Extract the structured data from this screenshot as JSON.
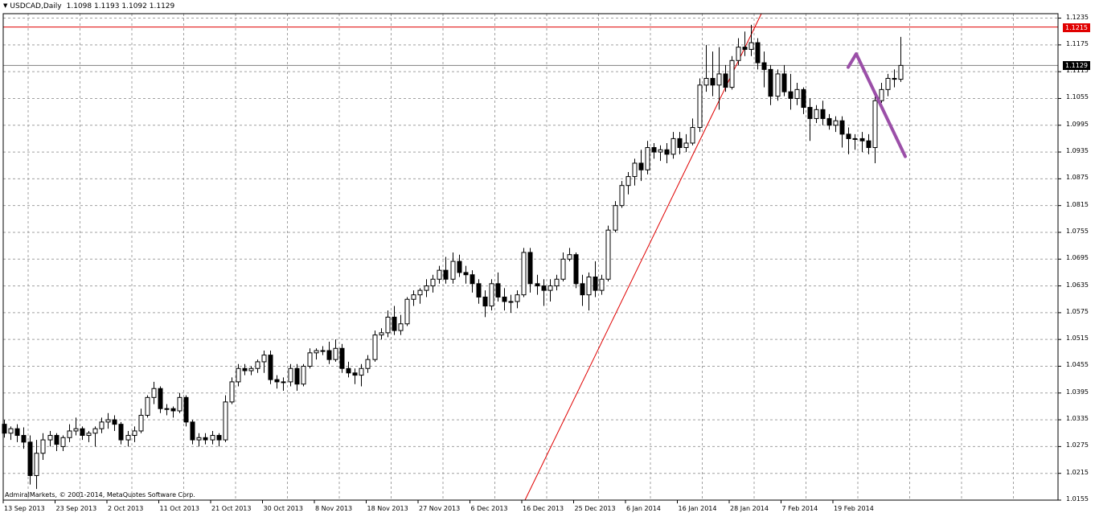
{
  "header": {
    "symbol": "USDCAD,Daily",
    "ohlc": [
      "1.1098",
      "1.1193",
      "1.1092",
      "1.1129"
    ]
  },
  "copyright": "AdmiralMarkets, © 2001-2014, MetaQuotes Software Corp.",
  "price_tags": {
    "resistance_level": "1.1215",
    "current_bid": "1.1129"
  },
  "colors": {
    "background": "#ffffff",
    "grid": "#a0a0a0",
    "candle_outline": "#000000",
    "bull_fill": "#ffffff",
    "bear_fill": "#000000",
    "trendline": "#e00000",
    "level_line": "#e00000",
    "projection": "#9b4fa8"
  },
  "chart_data": {
    "type": "candlestick",
    "title": "USDCAD,Daily",
    "ylim": [
      1.0155,
      1.1245
    ],
    "y_ticks": [
      "1.1235",
      "1.1175",
      "1.1115",
      "1.1055",
      "1.0995",
      "1.0935",
      "1.0875",
      "1.0815",
      "1.0755",
      "1.0695",
      "1.0635",
      "1.0575",
      "1.0515",
      "1.0455",
      "1.0395",
      "1.0335",
      "1.0275",
      "1.0215",
      "1.0155"
    ],
    "x_ticks": [
      "13 Sep 2013",
      "23 Sep 2013",
      "2 Oct 2013",
      "11 Oct 2013",
      "21 Oct 2013",
      "30 Oct 2013",
      "8 Nov 2013",
      "18 Nov 2013",
      "27 Nov 2013",
      "6 Dec 2013",
      "16 Dec 2013",
      "25 Dec 2013",
      "6 Jan 2014",
      "16 Jan 2014",
      "28 Jan 2014",
      "7 Feb 2014",
      "19 Feb 2014"
    ],
    "grid": true,
    "candles": [
      [
        1.0325,
        1.0335,
        1.0295,
        1.0305
      ],
      [
        1.0305,
        1.032,
        1.029,
        1.0315
      ],
      [
        1.0315,
        1.0325,
        1.0285,
        1.03
      ],
      [
        1.03,
        1.0318,
        1.027,
        1.0285
      ],
      [
        1.0285,
        1.03,
        1.019,
        1.021
      ],
      [
        1.021,
        1.029,
        1.018,
        1.026
      ],
      [
        1.026,
        1.0305,
        1.0245,
        1.029
      ],
      [
        1.029,
        1.031,
        1.0275,
        1.03
      ],
      [
        1.03,
        1.0305,
        1.0265,
        1.028
      ],
      [
        1.0275,
        1.03,
        1.0265,
        1.0295
      ],
      [
        1.0295,
        1.0325,
        1.0285,
        1.031
      ],
      [
        1.031,
        1.034,
        1.03,
        1.0315
      ],
      [
        1.0315,
        1.032,
        1.029,
        1.03
      ],
      [
        1.03,
        1.031,
        1.0285,
        1.0305
      ],
      [
        1.0305,
        1.032,
        1.0275,
        1.0315
      ],
      [
        1.0315,
        1.034,
        1.0305,
        1.033
      ],
      [
        1.033,
        1.035,
        1.0315,
        1.0335
      ],
      [
        1.0335,
        1.0345,
        1.031,
        1.0325
      ],
      [
        1.0325,
        1.033,
        1.028,
        1.029
      ],
      [
        1.029,
        1.031,
        1.0275,
        1.03
      ],
      [
        1.03,
        1.032,
        1.0285,
        1.031
      ],
      [
        1.031,
        1.036,
        1.0305,
        1.0345
      ],
      [
        1.0345,
        1.039,
        1.034,
        1.0385
      ],
      [
        1.0385,
        1.042,
        1.037,
        1.0405
      ],
      [
        1.0405,
        1.041,
        1.035,
        1.036
      ],
      [
        1.036,
        1.037,
        1.0345,
        1.036
      ],
      [
        1.036,
        1.0365,
        1.034,
        1.0355
      ],
      [
        1.0355,
        1.0395,
        1.035,
        1.0385
      ],
      [
        1.0385,
        1.039,
        1.032,
        1.033
      ],
      [
        1.033,
        1.0335,
        1.028,
        1.029
      ],
      [
        1.029,
        1.0305,
        1.0275,
        1.0295
      ],
      [
        1.0295,
        1.0305,
        1.028,
        1.029
      ],
      [
        1.029,
        1.031,
        1.028,
        1.03
      ],
      [
        1.03,
        1.0305,
        1.0275,
        1.029
      ],
      [
        1.029,
        1.039,
        1.0285,
        1.0375
      ],
      [
        1.0375,
        1.043,
        1.037,
        1.042
      ],
      [
        1.042,
        1.046,
        1.041,
        1.045
      ],
      [
        1.045,
        1.046,
        1.0435,
        1.0445
      ],
      [
        1.0445,
        1.0455,
        1.0435,
        1.045
      ],
      [
        1.045,
        1.047,
        1.044,
        1.0465
      ],
      [
        1.0465,
        1.049,
        1.044,
        1.048
      ],
      [
        1.048,
        1.049,
        1.0415,
        1.0425
      ],
      [
        1.0425,
        1.0435,
        1.0405,
        1.042
      ],
      [
        1.042,
        1.043,
        1.04,
        1.042
      ],
      [
        1.042,
        1.046,
        1.041,
        1.045
      ],
      [
        1.045,
        1.046,
        1.04,
        1.0415
      ],
      [
        1.0415,
        1.046,
        1.041,
        1.0455
      ],
      [
        1.0455,
        1.0495,
        1.045,
        1.0485
      ],
      [
        1.0485,
        1.0495,
        1.047,
        1.049
      ],
      [
        1.049,
        1.05,
        1.048,
        1.049
      ],
      [
        1.049,
        1.051,
        1.046,
        1.047
      ],
      [
        1.047,
        1.0515,
        1.0465,
        1.0495
      ],
      [
        1.0495,
        1.0505,
        1.044,
        1.045
      ],
      [
        1.045,
        1.0465,
        1.043,
        1.044
      ],
      [
        1.044,
        1.045,
        1.0415,
        1.0435
      ],
      [
        1.0435,
        1.046,
        1.041,
        1.045
      ],
      [
        1.045,
        1.048,
        1.044,
        1.047
      ],
      [
        1.047,
        1.0535,
        1.0465,
        1.0525
      ],
      [
        1.0525,
        1.054,
        1.0515,
        1.053
      ],
      [
        1.053,
        1.058,
        1.052,
        1.0565
      ],
      [
        1.0565,
        1.059,
        1.0525,
        1.0535
      ],
      [
        1.0535,
        1.057,
        1.0525,
        1.055
      ],
      [
        1.055,
        1.061,
        1.0545,
        1.0605
      ],
      [
        1.0605,
        1.0625,
        1.059,
        1.0615
      ],
      [
        1.0615,
        1.063,
        1.0595,
        1.0625
      ],
      [
        1.0625,
        1.065,
        1.061,
        1.0635
      ],
      [
        1.0635,
        1.066,
        1.062,
        1.065
      ],
      [
        1.065,
        1.068,
        1.064,
        1.067
      ],
      [
        1.067,
        1.07,
        1.064,
        1.065
      ],
      [
        1.065,
        1.071,
        1.064,
        1.069
      ],
      [
        1.069,
        1.0705,
        1.0655,
        1.0665
      ],
      [
        1.0665,
        1.068,
        1.064,
        1.066
      ],
      [
        1.066,
        1.067,
        1.062,
        1.064
      ],
      [
        1.064,
        1.065,
        1.0595,
        1.061
      ],
      [
        1.061,
        1.0625,
        1.0565,
        1.059
      ],
      [
        1.059,
        1.065,
        1.058,
        1.064
      ],
      [
        1.064,
        1.0665,
        1.06,
        1.061
      ],
      [
        1.061,
        1.063,
        1.058,
        1.06
      ],
      [
        1.06,
        1.0615,
        1.0575,
        1.06
      ],
      [
        1.06,
        1.0625,
        1.0585,
        1.0615
      ],
      [
        1.0615,
        1.072,
        1.061,
        1.071
      ],
      [
        1.071,
        1.072,
        1.062,
        1.064
      ],
      [
        1.064,
        1.066,
        1.0615,
        1.0635
      ],
      [
        1.0635,
        1.065,
        1.059,
        1.0625
      ],
      [
        1.0625,
        1.065,
        1.06,
        1.0635
      ],
      [
        1.0635,
        1.066,
        1.0625,
        1.065
      ],
      [
        1.065,
        1.071,
        1.0645,
        1.0695
      ],
      [
        1.0695,
        1.072,
        1.069,
        1.0705
      ],
      [
        1.0705,
        1.071,
        1.063,
        1.064
      ],
      [
        1.064,
        1.066,
        1.059,
        1.0615
      ],
      [
        1.0615,
        1.0665,
        1.058,
        1.0655
      ],
      [
        1.0655,
        1.069,
        1.061,
        1.0625
      ],
      [
        1.0625,
        1.066,
        1.0615,
        1.065
      ],
      [
        1.065,
        1.077,
        1.0645,
        1.076
      ],
      [
        1.076,
        1.0825,
        1.0755,
        1.0815
      ],
      [
        1.0815,
        1.087,
        1.081,
        1.086
      ],
      [
        1.086,
        1.089,
        1.084,
        1.088
      ],
      [
        1.088,
        1.092,
        1.086,
        1.091
      ],
      [
        1.091,
        1.094,
        1.087,
        1.0895
      ],
      [
        1.0895,
        1.096,
        1.0885,
        1.0945
      ],
      [
        1.0945,
        1.0955,
        1.092,
        1.0935
      ],
      [
        1.0935,
        1.095,
        1.0915,
        1.094
      ],
      [
        1.094,
        1.0955,
        1.091,
        1.093
      ],
      [
        1.093,
        1.098,
        1.092,
        1.0965
      ],
      [
        1.0965,
        1.098,
        1.093,
        1.0945
      ],
      [
        1.0945,
        1.0975,
        1.0935,
        1.0955
      ],
      [
        1.0955,
        1.101,
        1.095,
        1.099
      ],
      [
        1.099,
        1.11,
        1.098,
        1.1085
      ],
      [
        1.1085,
        1.1175,
        1.107,
        1.11
      ],
      [
        1.11,
        1.116,
        1.106,
        1.1085
      ],
      [
        1.1085,
        1.117,
        1.103,
        1.111
      ],
      [
        1.111,
        1.113,
        1.107,
        1.108
      ],
      [
        1.108,
        1.115,
        1.1075,
        1.114
      ],
      [
        1.114,
        1.119,
        1.113,
        1.117
      ],
      [
        1.117,
        1.1205,
        1.115,
        1.1165
      ],
      [
        1.1165,
        1.122,
        1.115,
        1.118
      ],
      [
        1.118,
        1.119,
        1.112,
        1.1135
      ],
      [
        1.1135,
        1.116,
        1.108,
        1.112
      ],
      [
        1.112,
        1.113,
        1.104,
        1.106
      ],
      [
        1.106,
        1.112,
        1.105,
        1.111
      ],
      [
        1.111,
        1.113,
        1.106,
        1.107
      ],
      [
        1.107,
        1.111,
        1.103,
        1.1055
      ],
      [
        1.1055,
        1.109,
        1.104,
        1.1075
      ],
      [
        1.1075,
        1.108,
        1.102,
        1.1035
      ],
      [
        1.1035,
        1.1055,
        1.096,
        1.101
      ],
      [
        1.101,
        1.104,
        1.1,
        1.103
      ],
      [
        1.103,
        1.105,
        1.0995,
        1.101
      ],
      [
        1.101,
        1.102,
        1.0985,
        1.0995
      ],
      [
        1.0995,
        1.1015,
        1.098,
        1.1005
      ],
      [
        1.1005,
        1.1015,
        1.0945,
        1.0975
      ],
      [
        1.0975,
        1.099,
        1.093,
        1.0965
      ],
      [
        1.0965,
        1.0975,
        1.094,
        1.0965
      ],
      [
        1.0965,
        1.098,
        1.0935,
        1.096
      ],
      [
        1.096,
        1.0975,
        1.093,
        1.0945
      ],
      [
        1.0945,
        1.106,
        1.091,
        1.105
      ],
      [
        1.105,
        1.109,
        1.1045,
        1.1075
      ],
      [
        1.1075,
        1.111,
        1.106,
        1.11
      ],
      [
        1.11,
        1.112,
        1.108,
        1.1098
      ],
      [
        1.1098,
        1.1193,
        1.1092,
        1.1129
      ]
    ],
    "horizontal_levels": [
      1.1215,
      1.1129
    ],
    "trendline": {
      "from": [
        "16 Dec 2013",
        1.0155
      ],
      "to": [
        "28 Jan 2014",
        1.1245
      ]
    },
    "projection": [
      [
        "19 Feb 2014",
        1.1125
      ],
      [
        "19 Feb 2014",
        1.1155
      ],
      [
        "7 Mar 2014",
        1.0925
      ]
    ]
  }
}
